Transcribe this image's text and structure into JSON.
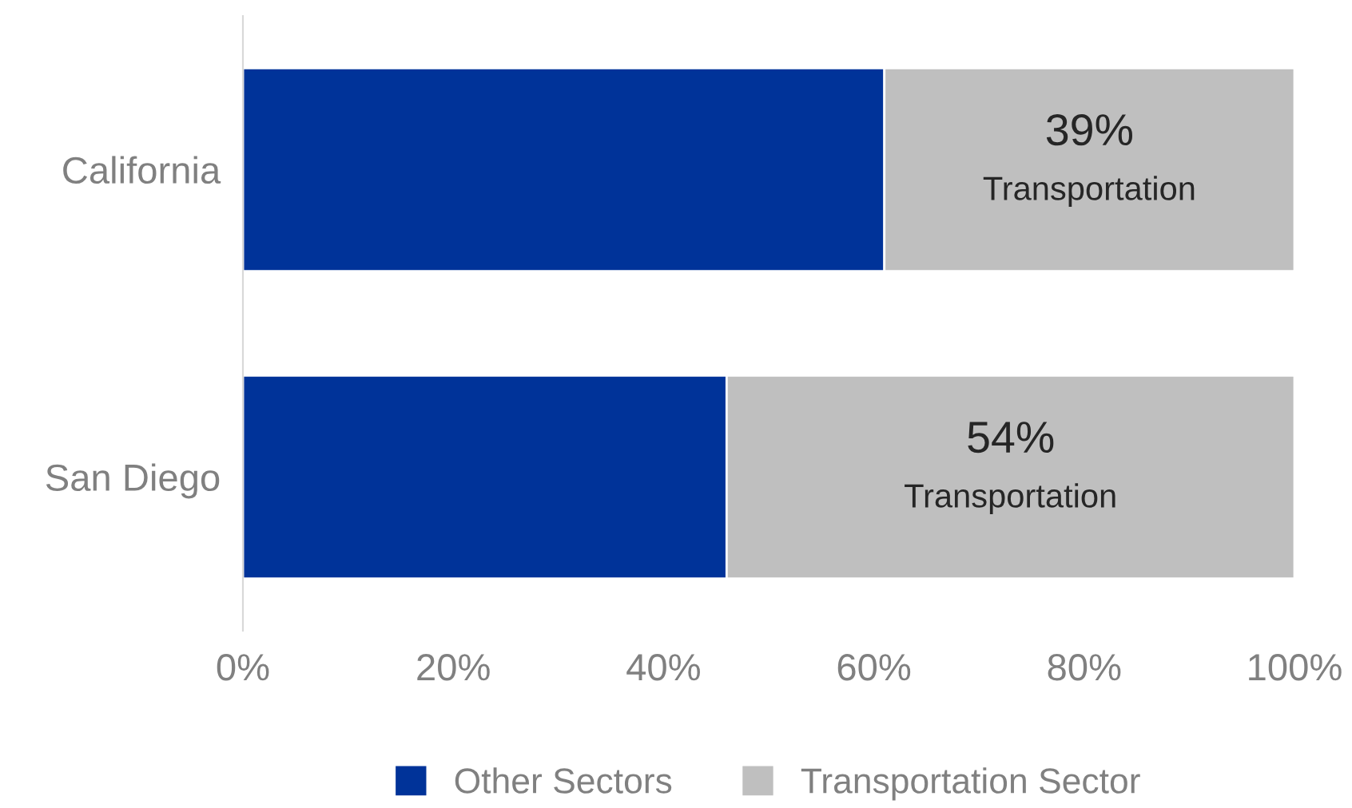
{
  "chart_data": {
    "type": "bar",
    "orientation": "horizontal",
    "stacked": true,
    "categories": [
      "California",
      "San Diego"
    ],
    "series": [
      {
        "name": "Other Sectors",
        "color": "#003399",
        "values": [
          61,
          46
        ]
      },
      {
        "name": "Transportation Sector",
        "color": "#bfbfbf",
        "values": [
          39,
          54
        ],
        "value_labels": [
          "39%\nTransportation",
          "54%\nTransportation"
        ]
      }
    ],
    "xlim": [
      0,
      100
    ],
    "xticks": [
      {
        "value": 0,
        "label": "0%"
      },
      {
        "value": 20,
        "label": "20%"
      },
      {
        "value": 40,
        "label": "40%"
      },
      {
        "value": 60,
        "label": "60%"
      },
      {
        "value": 80,
        "label": "80%"
      },
      {
        "value": 100,
        "label": "100%"
      }
    ],
    "grid": false,
    "legend": "bottom"
  }
}
